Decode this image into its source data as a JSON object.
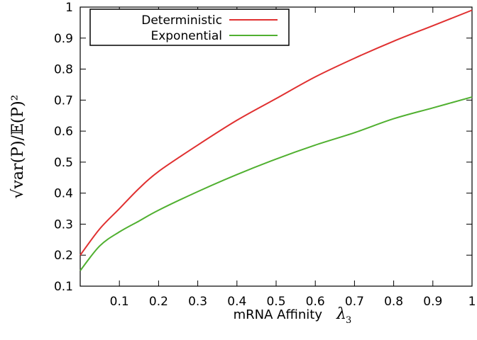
{
  "chart_data": {
    "type": "line",
    "xlabel": "mRNA Affinity",
    "xlabel_symbol": "λ",
    "xlabel_subscript": "3",
    "ylabel": "√var(P)/𝔼(P)²",
    "xlim": [
      0,
      1
    ],
    "ylim": [
      0.1,
      1
    ],
    "x_ticks": [
      "0.1",
      "0.2",
      "0.3",
      "0.4",
      "0.5",
      "0.6",
      "0.7",
      "0.8",
      "0.9",
      "1"
    ],
    "y_ticks": [
      "0.1",
      "0.2",
      "0.3",
      "0.4",
      "0.5",
      "0.6",
      "0.7",
      "0.8",
      "0.9",
      "1"
    ],
    "grid": false,
    "legend_position": "top-left",
    "series": [
      {
        "name": "Deterministic",
        "color": "#e03030",
        "x": [
          0.0,
          0.05,
          0.1,
          0.15,
          0.2,
          0.3,
          0.4,
          0.5,
          0.6,
          0.7,
          0.8,
          0.9,
          1.0
        ],
        "y": [
          0.2,
          0.285,
          0.35,
          0.415,
          0.47,
          0.555,
          0.635,
          0.705,
          0.775,
          0.835,
          0.89,
          0.94,
          0.99
        ]
      },
      {
        "name": "Exponential",
        "color": "#50b030",
        "x": [
          0.0,
          0.05,
          0.1,
          0.15,
          0.2,
          0.3,
          0.4,
          0.5,
          0.6,
          0.7,
          0.8,
          0.9,
          1.0
        ],
        "y": [
          0.15,
          0.23,
          0.275,
          0.31,
          0.345,
          0.405,
          0.46,
          0.51,
          0.555,
          0.595,
          0.64,
          0.675,
          0.71
        ]
      }
    ]
  }
}
